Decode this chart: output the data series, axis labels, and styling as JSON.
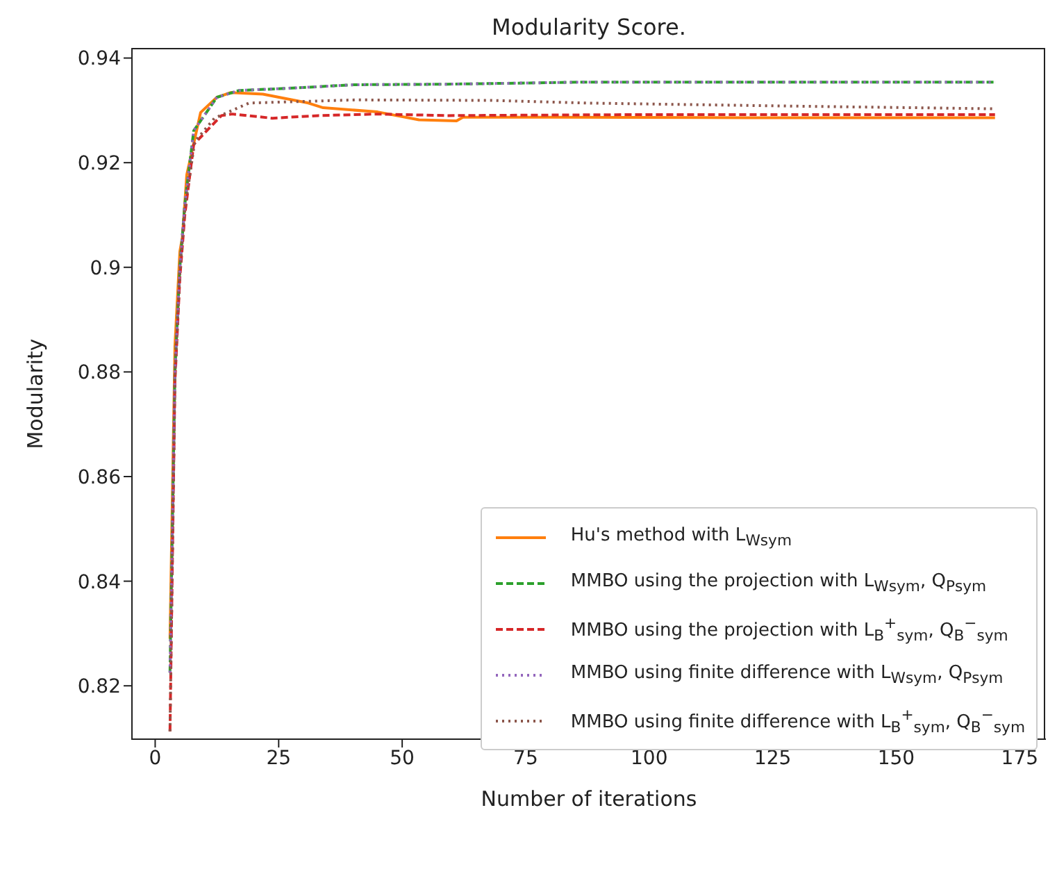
{
  "chart_data": {
    "type": "line",
    "title": "Modularity Score.",
    "xlabel": "Number of iterations",
    "ylabel": "Modularity",
    "xlim": [
      -4.7,
      180.3
    ],
    "xticks": [
      0,
      25,
      50,
      75,
      100,
      125,
      150,
      175
    ],
    "ylim": [
      0.8098,
      0.9418
    ],
    "yticks": [
      0.82,
      0.84,
      0.86,
      0.88,
      0.9,
      0.92,
      0.94
    ],
    "grid": false,
    "legend": "bottom right",
    "marker": "none",
    "series": [
      {
        "name": "Hu's method with L$_{W}$$_{sym}$",
        "color": "#ff7f0e",
        "line_style": "solid",
        "x": [
          3,
          4,
          5,
          5.5,
          6.4,
          9.2,
          12.5,
          15.3,
          21.8,
          31,
          34,
          45,
          53.4,
          61,
          62.3,
          80,
          120,
          170
        ],
        "values": [
          0.829,
          0.885,
          0.903,
          0.9057,
          0.9177,
          0.9296,
          0.9325,
          0.9334,
          0.9331,
          0.9314,
          0.9305,
          0.9297,
          0.9282,
          0.928,
          0.9287,
          0.9287,
          0.9286,
          0.9286
        ]
      },
      {
        "name": "MMBO using the projection with L$_{W}$$_{sym}$, Q$_{P}$$_{sym}$",
        "color": "#2ca02c",
        "line_style": "dashed",
        "x": [
          3,
          4,
          5,
          6,
          7.8,
          12.5,
          17,
          26.5,
          40.4,
          59,
          87,
          120,
          170
        ],
        "values": [
          0.8225,
          0.88,
          0.9,
          0.912,
          0.9261,
          0.9325,
          0.9338,
          0.9342,
          0.9349,
          0.935,
          0.9354,
          0.9354,
          0.9354
        ]
      },
      {
        "name": "MMBO using the projection with L$_{B}$$^{+}$$_{sym}$, Q$_{B}$$^{−}$$_{sym}$",
        "color": "#d62728",
        "line_style": "dashed",
        "x": [
          3,
          4,
          5,
          6,
          7.8,
          13.4,
          15.6,
          23.7,
          33,
          45,
          59,
          100,
          170
        ],
        "values": [
          0.8113,
          0.878,
          0.898,
          0.91,
          0.9235,
          0.929,
          0.9293,
          0.9285,
          0.929,
          0.9293,
          0.929,
          0.9292,
          0.9292
        ]
      },
      {
        "name": "MMBO using finite difference with L$_{W}$$_{sym}$, Q$_{P}$$_{sym}$",
        "color": "#9467bd",
        "line_style": "dotted",
        "x": [
          3,
          4,
          5,
          6,
          7.8,
          12.5,
          17,
          26.5,
          40.4,
          59,
          87,
          120,
          170
        ],
        "values": [
          0.8225,
          0.88,
          0.9,
          0.912,
          0.9261,
          0.9325,
          0.9338,
          0.9342,
          0.9349,
          0.935,
          0.9354,
          0.9354,
          0.9354
        ]
      },
      {
        "name": "MMBO using finite difference with L$_{B}$$^{+}$$_{sym}$, Q$_{B}$$^{−}$$_{sym}$",
        "color": "#8c564b",
        "line_style": "dotted",
        "x": [
          3,
          4,
          5,
          6,
          8,
          12,
          15.6,
          19,
          40.4,
          68,
          87,
          130,
          170
        ],
        "values": [
          0.8113,
          0.879,
          0.899,
          0.911,
          0.924,
          0.9285,
          0.93,
          0.9314,
          0.932,
          0.9319,
          0.9314,
          0.9308,
          0.9303
        ]
      }
    ]
  }
}
